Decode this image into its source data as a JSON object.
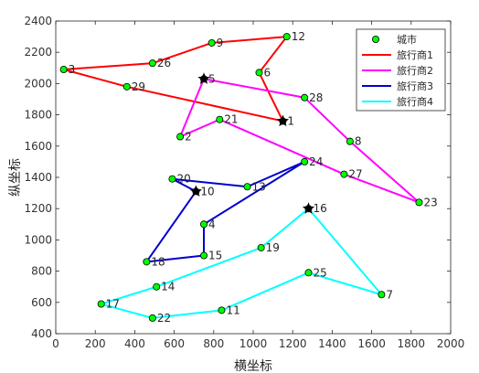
{
  "chart_data": {
    "type": "scatter",
    "xlabel": "横坐标",
    "ylabel": "纵坐标",
    "xlim": [
      0,
      2000
    ],
    "ylim": [
      400,
      2400
    ],
    "xticks": [
      0,
      200,
      400,
      600,
      800,
      1000,
      1200,
      1400,
      1600,
      1800,
      2000
    ],
    "yticks": [
      400,
      600,
      800,
      1000,
      1200,
      1400,
      1600,
      1800,
      2000,
      2200,
      2400
    ],
    "grid": false,
    "legend_position": "top-right",
    "city_series": {
      "name": "城市",
      "marker_color": "#00ff00",
      "edge_color": "#000000"
    },
    "cities": [
      {
        "id": "1",
        "x": 1150,
        "y": 1760
      },
      {
        "id": "2",
        "x": 630,
        "y": 1660
      },
      {
        "id": "3",
        "x": 40,
        "y": 2090
      },
      {
        "id": "4",
        "x": 750,
        "y": 1100
      },
      {
        "id": "5",
        "x": 750,
        "y": 2030
      },
      {
        "id": "6",
        "x": 1030,
        "y": 2070
      },
      {
        "id": "7",
        "x": 1650,
        "y": 650
      },
      {
        "id": "8",
        "x": 1490,
        "y": 1630
      },
      {
        "id": "9",
        "x": 790,
        "y": 2260
      },
      {
        "id": "10",
        "x": 710,
        "y": 1310
      },
      {
        "id": "11",
        "x": 840,
        "y": 550
      },
      {
        "id": "12",
        "x": 1170,
        "y": 2300
      },
      {
        "id": "13",
        "x": 970,
        "y": 1340
      },
      {
        "id": "14",
        "x": 510,
        "y": 700
      },
      {
        "id": "15",
        "x": 750,
        "y": 900
      },
      {
        "id": "16",
        "x": 1280,
        "y": 1200
      },
      {
        "id": "17",
        "x": 230,
        "y": 590
      },
      {
        "id": "18",
        "x": 460,
        "y": 860
      },
      {
        "id": "19",
        "x": 1040,
        "y": 950
      },
      {
        "id": "20",
        "x": 590,
        "y": 1390
      },
      {
        "id": "21",
        "x": 830,
        "y": 1770
      },
      {
        "id": "22",
        "x": 490,
        "y": 500
      },
      {
        "id": "23",
        "x": 1840,
        "y": 1240
      },
      {
        "id": "24",
        "x": 1260,
        "y": 1500
      },
      {
        "id": "25",
        "x": 1280,
        "y": 790
      },
      {
        "id": "26",
        "x": 490,
        "y": 2130
      },
      {
        "id": "27",
        "x": 1460,
        "y": 1420
      },
      {
        "id": "28",
        "x": 1260,
        "y": 1910
      },
      {
        "id": "29",
        "x": 360,
        "y": 1980
      }
    ],
    "depots": [
      {
        "x": 1150,
        "y": 1760
      },
      {
        "x": 750,
        "y": 2030
      },
      {
        "x": 710,
        "y": 1310
      },
      {
        "x": 1280,
        "y": 1200
      }
    ],
    "series": [
      {
        "name": "旅行商1",
        "color": "#ff0000",
        "route": [
          "1",
          "6",
          "12",
          "9",
          "26",
          "3",
          "29",
          "1"
        ]
      },
      {
        "name": "旅行商2",
        "color": "#ff00ff",
        "route": [
          "5",
          "28",
          "8",
          "23",
          "27",
          "21",
          "2",
          "5"
        ]
      },
      {
        "name": "旅行商3",
        "color": "#0000cd",
        "route": [
          "10",
          "20",
          "13",
          "24",
          "4",
          "15",
          "18",
          "10"
        ]
      },
      {
        "name": "旅行商4",
        "color": "#00ffff",
        "route": [
          "16",
          "19",
          "14",
          "17",
          "22",
          "11",
          "25",
          "7",
          "16"
        ]
      }
    ]
  }
}
